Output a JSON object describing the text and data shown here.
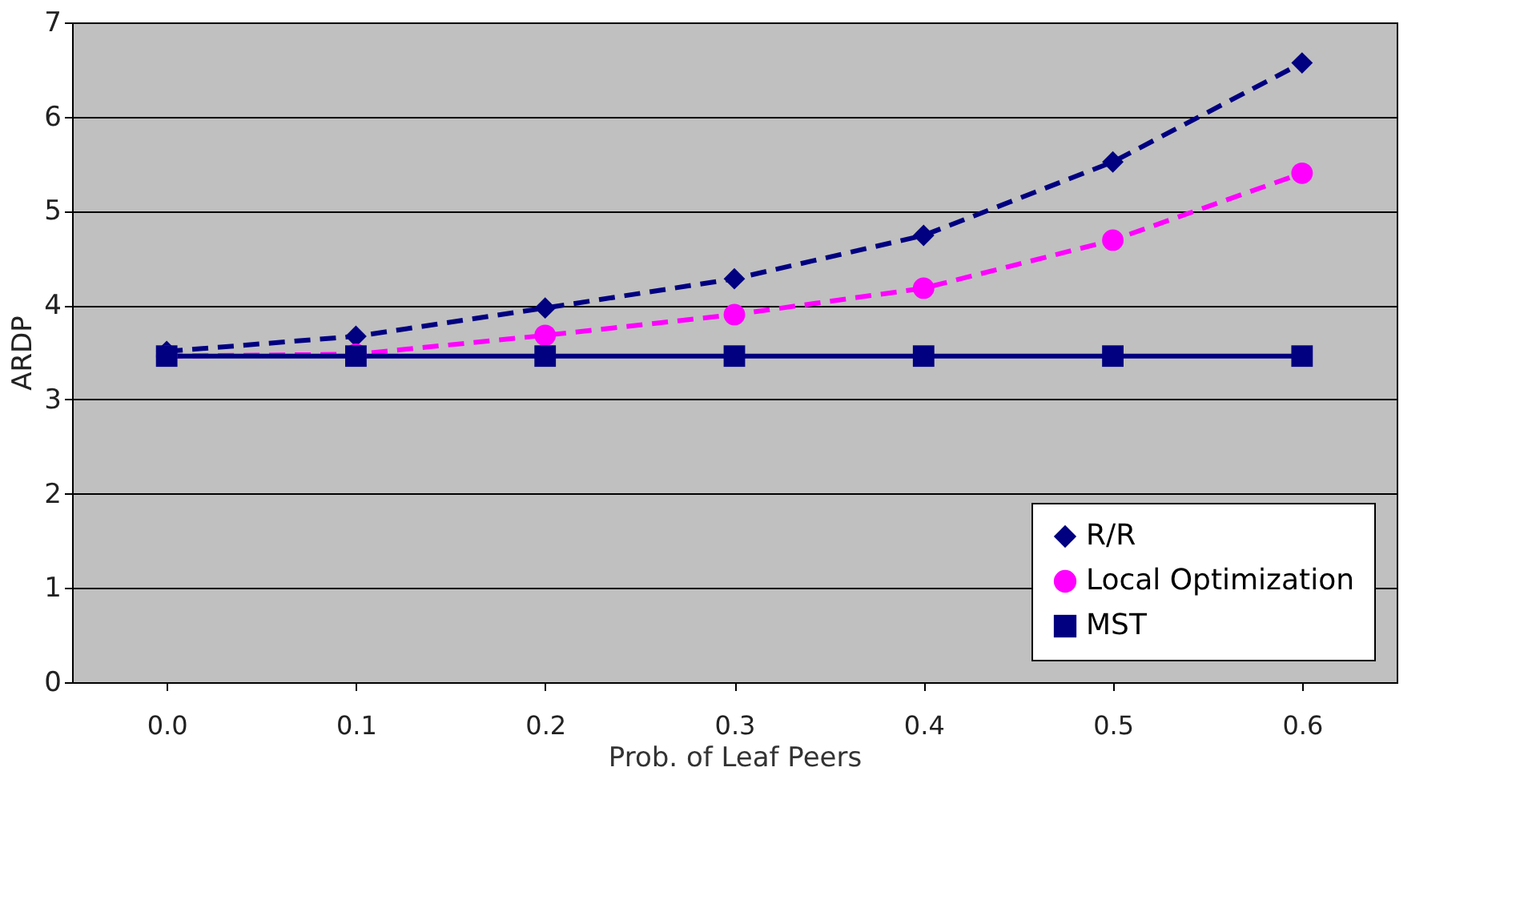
{
  "chart_data": {
    "type": "line",
    "xlabel": "Prob. of Leaf Peers",
    "ylabel": "ARDP",
    "categories": [
      "0.0",
      "0.1",
      "0.2",
      "0.3",
      "0.4",
      "0.5",
      "0.6"
    ],
    "series": [
      {
        "name": "R/R",
        "color": "#000080",
        "marker": "diamond",
        "line_style": "dashed",
        "values": [
          3.51,
          3.67,
          3.97,
          4.28,
          4.74,
          5.52,
          6.57
        ]
      },
      {
        "name": "Local Optimization",
        "color": "#ff00ff",
        "marker": "circle",
        "line_style": "dashed",
        "values": [
          3.46,
          3.48,
          3.68,
          3.9,
          4.18,
          4.69,
          5.4
        ]
      },
      {
        "name": "MST",
        "color": "#000080",
        "marker": "square",
        "line_style": "solid",
        "values": [
          3.46,
          3.46,
          3.46,
          3.46,
          3.46,
          3.46,
          3.46
        ]
      }
    ],
    "ylim": [
      0,
      7
    ],
    "yticks": [
      0,
      1,
      2,
      3,
      4,
      5,
      6,
      7
    ],
    "grid": "y",
    "legend": "bottom right"
  }
}
